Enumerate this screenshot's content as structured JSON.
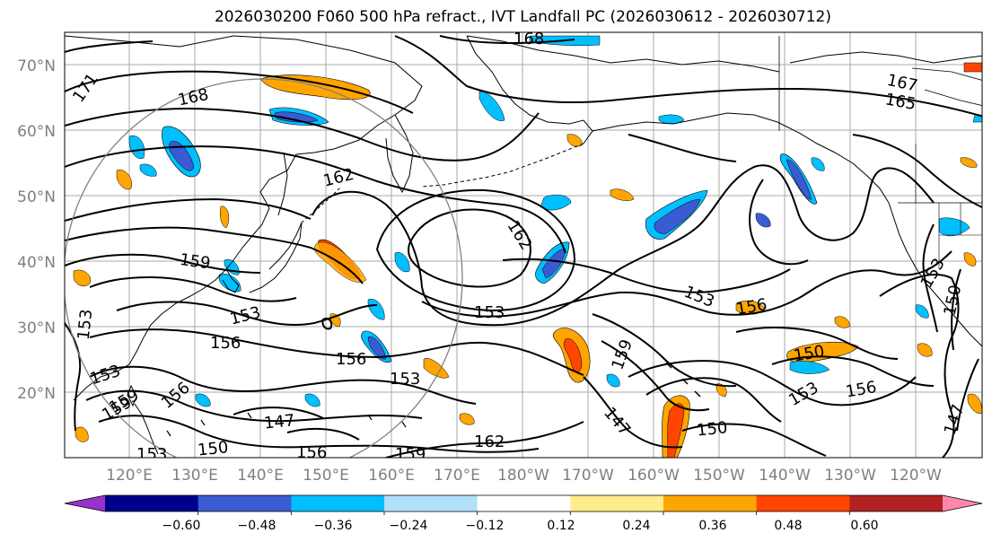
{
  "title": "2026030200 F060 500 hPa refract., IVT Landfall PC (2026030612 - 2026030712)",
  "map": {
    "lat_labels": [
      "70°N",
      "60°N",
      "50°N",
      "40°N",
      "30°N",
      "20°N"
    ],
    "lon_labels": [
      "120°E",
      "130°E",
      "140°E",
      "150°E",
      "160°E",
      "170°E",
      "180°W",
      "170°W",
      "160°W",
      "150°W",
      "140°W",
      "130°W",
      "120°W"
    ],
    "contour_labels": [
      "168",
      "171",
      "168",
      "167",
      "165",
      "162",
      "162",
      "159",
      "153",
      "153",
      "153",
      "156",
      "156",
      "156",
      "153",
      "153",
      "159",
      "147",
      "150",
      "156",
      "159",
      "162",
      "147",
      "150",
      "153",
      "156",
      "150",
      "153",
      "159",
      "147",
      "153",
      "150",
      "159",
      "156",
      "153"
    ],
    "colors": {
      "grid": "#a9a9a9",
      "contour": "#000000",
      "circle": "#808080",
      "axis_label": "#7f7f7f"
    }
  },
  "colorbar": {
    "tick_labels": [
      "−0.60",
      "−0.48",
      "−0.36",
      "−0.24",
      "−0.12",
      "0.12",
      "0.24",
      "0.36",
      "0.48",
      "0.60"
    ],
    "colors": [
      "#9932cc",
      "#00008b",
      "#3a5bd1",
      "#00bfff",
      "#b0e0fa",
      "#ffffff",
      "#ffec8b",
      "#ffa500",
      "#ff4500",
      "#b22222",
      "#ff88aa"
    ]
  }
}
